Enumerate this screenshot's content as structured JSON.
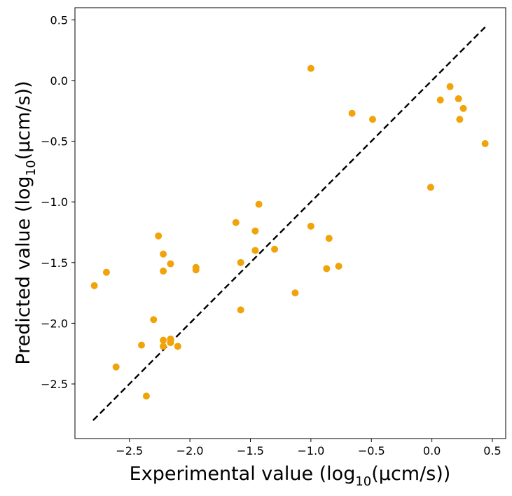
{
  "chart_data": {
    "type": "scatter",
    "xlabel_main": "Experimental value (log",
    "xlabel_sub": "10",
    "xlabel_tail": "(µcm/s))",
    "ylabel_main": "Predicted value (log",
    "ylabel_sub": "10",
    "ylabel_tail": "(µcm/s))",
    "xlim": [
      -2.95,
      0.61
    ],
    "ylim": [
      -2.95,
      0.6
    ],
    "xticks": [
      -2.5,
      -2.0,
      -1.5,
      -1.0,
      -0.5,
      0.0,
      0.5
    ],
    "xtick_labels": [
      "−2.5",
      "−2.0",
      "−1.5",
      "−1.0",
      "−0.5",
      "0.0",
      "0.5"
    ],
    "yticks": [
      0.5,
      0.0,
      -0.5,
      -1.0,
      -1.5,
      -2.0,
      -2.5
    ],
    "ytick_labels": [
      "0.5",
      "0.0",
      "−0.5",
      "−1.0",
      "−1.5",
      "−2.0",
      "−2.5"
    ],
    "grid": false,
    "marker_color": "#f0a30a",
    "line_color": "#000000",
    "reference_line": {
      "x": [
        -2.8,
        0.44
      ],
      "y": [
        -2.8,
        0.44
      ],
      "style": "dashed"
    },
    "points": [
      {
        "x": -2.79,
        "y": -1.69
      },
      {
        "x": -2.69,
        "y": -1.58
      },
      {
        "x": -2.61,
        "y": -2.36
      },
      {
        "x": -2.4,
        "y": -2.18
      },
      {
        "x": -2.36,
        "y": -2.6
      },
      {
        "x": -2.3,
        "y": -1.97
      },
      {
        "x": -2.26,
        "y": -1.28
      },
      {
        "x": -2.22,
        "y": -1.43
      },
      {
        "x": -2.22,
        "y": -1.57
      },
      {
        "x": -2.22,
        "y": -2.14
      },
      {
        "x": -2.22,
        "y": -2.19
      },
      {
        "x": -2.16,
        "y": -1.51
      },
      {
        "x": -2.16,
        "y": -2.13
      },
      {
        "x": -2.16,
        "y": -2.16
      },
      {
        "x": -2.1,
        "y": -2.19
      },
      {
        "x": -1.95,
        "y": -1.54
      },
      {
        "x": -1.95,
        "y": -1.56
      },
      {
        "x": -1.62,
        "y": -1.17
      },
      {
        "x": -1.58,
        "y": -1.5
      },
      {
        "x": -1.58,
        "y": -1.89
      },
      {
        "x": -1.46,
        "y": -1.24
      },
      {
        "x": -1.46,
        "y": -1.4
      },
      {
        "x": -1.43,
        "y": -1.02
      },
      {
        "x": -1.3,
        "y": -1.39
      },
      {
        "x": -1.13,
        "y": -1.75
      },
      {
        "x": -1.0,
        "y": 0.1
      },
      {
        "x": -1.0,
        "y": -1.2
      },
      {
        "x": -0.87,
        "y": -1.55
      },
      {
        "x": -0.85,
        "y": -1.3
      },
      {
        "x": -0.77,
        "y": -1.53
      },
      {
        "x": -0.66,
        "y": -0.27
      },
      {
        "x": -0.49,
        "y": -0.32
      },
      {
        "x": -0.01,
        "y": -0.88
      },
      {
        "x": 0.07,
        "y": -0.16
      },
      {
        "x": 0.15,
        "y": -0.05
      },
      {
        "x": 0.22,
        "y": -0.15
      },
      {
        "x": 0.23,
        "y": -0.32
      },
      {
        "x": 0.26,
        "y": -0.23
      },
      {
        "x": 0.44,
        "y": -0.52
      }
    ]
  }
}
